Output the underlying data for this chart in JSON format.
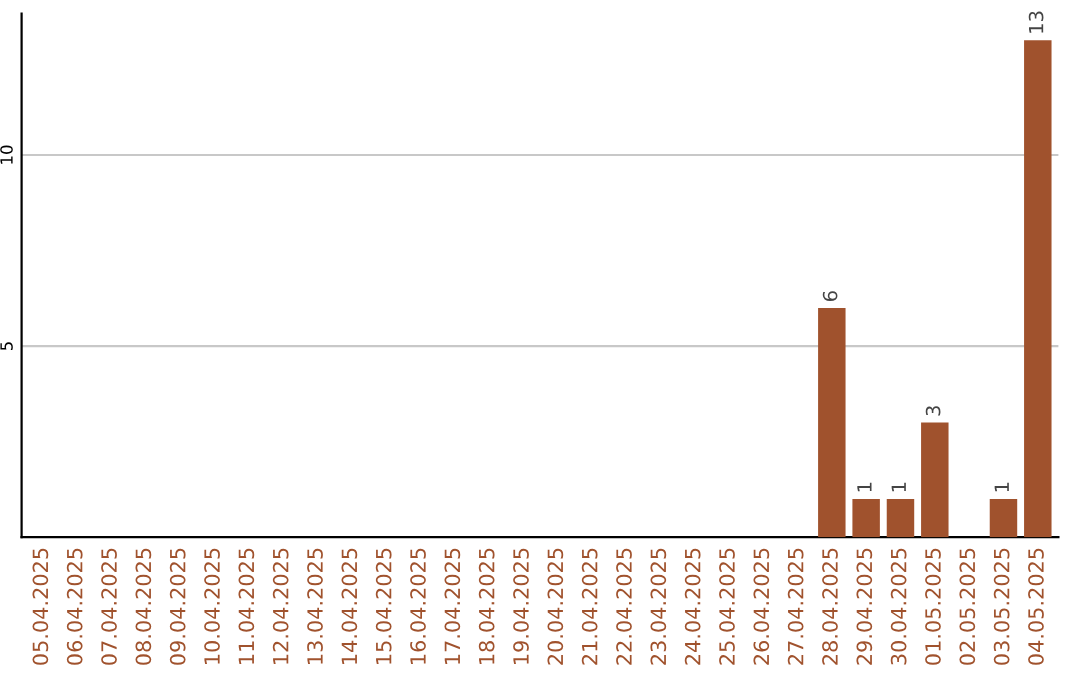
{
  "chart_data": {
    "type": "bar",
    "categories": [
      "05.04.2025",
      "06.04.2025",
      "07.04.2025",
      "08.04.2025",
      "09.04.2025",
      "10.04.2025",
      "11.04.2025",
      "12.04.2025",
      "13.04.2025",
      "14.04.2025",
      "15.04.2025",
      "16.04.2025",
      "17.04.2025",
      "18.04.2025",
      "19.04.2025",
      "20.04.2025",
      "21.04.2025",
      "22.04.2025",
      "23.04.2025",
      "24.04.2025",
      "25.04.2025",
      "26.04.2025",
      "27.04.2025",
      "28.04.2025",
      "29.04.2025",
      "30.04.2025",
      "01.05.2025",
      "02.05.2025",
      "03.05.2025",
      "04.05.2025"
    ],
    "values": [
      0,
      0,
      0,
      0,
      0,
      0,
      0,
      0,
      0,
      0,
      0,
      0,
      0,
      0,
      0,
      0,
      0,
      0,
      0,
      0,
      0,
      0,
      0,
      6,
      1,
      1,
      3,
      0,
      1,
      13
    ],
    "value_labels": [
      null,
      null,
      null,
      null,
      null,
      null,
      null,
      null,
      null,
      null,
      null,
      null,
      null,
      null,
      null,
      null,
      null,
      null,
      null,
      null,
      null,
      null,
      null,
      "6",
      "1",
      "1",
      "3",
      null,
      "1",
      "13"
    ],
    "color": "#a0522d",
    "ylim": [
      0,
      13.7
    ],
    "yticks": [
      5,
      10
    ],
    "grid": "y",
    "legend": false
  }
}
